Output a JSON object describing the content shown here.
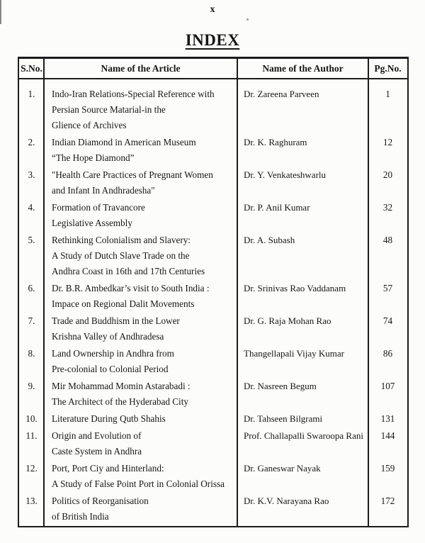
{
  "page": {
    "number": "x",
    "title": "INDEX"
  },
  "table": {
    "headers": {
      "sno": "S.No.",
      "article": "Name of the Article",
      "author": "Name of the Author",
      "page": "Pg.No."
    },
    "rows": [
      {
        "sno": "1.",
        "article_lines": [
          "Indo-Iran Relations-Special Reference with",
          "Persian Source Matarial-in the",
          "Glience of Archives"
        ],
        "author": "Dr. Zareena Parveen",
        "page": "1"
      },
      {
        "sno": "2.",
        "article_lines": [
          "Indian Diamond in American Museum",
          "“The Hope Diamond”"
        ],
        "author": "Dr. K. Raghuram",
        "page": "12"
      },
      {
        "sno": "3.",
        "article_lines": [
          "\"Health Care Practices of Pregnant Women",
          "and Infant In Andhradesha\""
        ],
        "author": "Dr. Y. Venkateshwarlu",
        "page": "20"
      },
      {
        "sno": "4.",
        "article_lines": [
          "Formation of Travancore",
          "Legislative Assembly"
        ],
        "author": "Dr. P. Anil Kumar",
        "page": "32"
      },
      {
        "sno": "5.",
        "article_lines": [
          "Rethinking Colonialism and Slavery:",
          "A Study of Dutch Slave Trade on the",
          "Andhra Coast in 16th and 17th Centuries"
        ],
        "author": "Dr. A. Subash",
        "page": "48"
      },
      {
        "sno": "6.",
        "article_lines": [
          "Dr. B.R. Ambedkar’s visit to South India :",
          "Impace on Regional Dalit Movements"
        ],
        "author": "Dr. Srinivas Rao Vaddanam",
        "page": "57"
      },
      {
        "sno": "7.",
        "article_lines": [
          "Trade and Buddhism in the Lower",
          "Krishna Valley of Andhradesa"
        ],
        "author": "Dr. G. Raja Mohan Rao",
        "page": "74"
      },
      {
        "sno": "8.",
        "article_lines": [
          "Land Ownership in Andhra from",
          "Pre-colonial to Colonial Period"
        ],
        "author": "Thangellapali Vijay Kumar",
        "page": "86"
      },
      {
        "sno": "9.",
        "article_lines": [
          "Mir Mohammad Momin Astarabadi :",
          "The Architect of the Hyderabad City"
        ],
        "author": "Dr. Nasreen Begum",
        "page": "107"
      },
      {
        "sno": "10.",
        "article_lines": [
          "Literature During Qutb Shahis"
        ],
        "author": "Dr. Tahseen Bilgrami",
        "page": "131"
      },
      {
        "sno": "11.",
        "article_lines": [
          "Origin and Evolution of",
          "Caste System in Andhra"
        ],
        "author": "Prof. Challapalli Swaroopa Rani",
        "page": "144"
      },
      {
        "sno": "12.",
        "article_lines": [
          "Port, Port Ciy and Hinterland:",
          "A Study of False Point Port in Colonial Orissa"
        ],
        "author": "Dr. Ganeswar Nayak",
        "page": "159"
      },
      {
        "sno": "13.",
        "article_lines": [
          "Politics of Reorganisation",
          "of British India"
        ],
        "author": "Dr. K.V. Narayana Rao",
        "page": "172"
      }
    ]
  }
}
